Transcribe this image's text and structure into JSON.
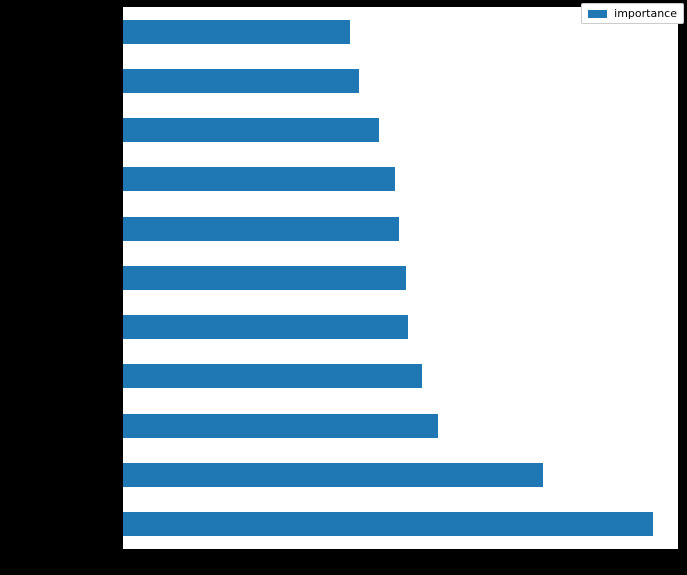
{
  "figure": {
    "background_color": "#000000",
    "plot_background_color": "#ffffff"
  },
  "legend": {
    "label": "importance",
    "swatch_color": "#1f77b4",
    "position": "upper-right",
    "border_color": "#cccccc",
    "background_color": "#ffffff"
  },
  "chart_data": {
    "type": "bar",
    "orientation": "horizontal",
    "title": "",
    "xlabel": "",
    "ylabel": "",
    "bar_color": "#1f77b4",
    "n_bars": 11,
    "categories": [
      "",
      "",
      "",
      "",
      "",
      "",
      "",
      "",
      "",
      "",
      ""
    ],
    "series": [
      {
        "name": "importance",
        "values_fraction_of_xaxis": [
          0.409,
          0.425,
          0.461,
          0.49,
          0.497,
          0.51,
          0.513,
          0.539,
          0.567,
          0.756,
          0.955
        ]
      }
    ],
    "xlim": [
      0,
      1
    ],
    "grid": false,
    "legend_position": "upper right",
    "axis_tick_labels_visible": false,
    "note": "Axis tick labels and category labels are rendered black-on-black in the figure margins and are not legible; bar values are expressed as the fraction of the x-axis width each bar spans (top bar first)."
  }
}
